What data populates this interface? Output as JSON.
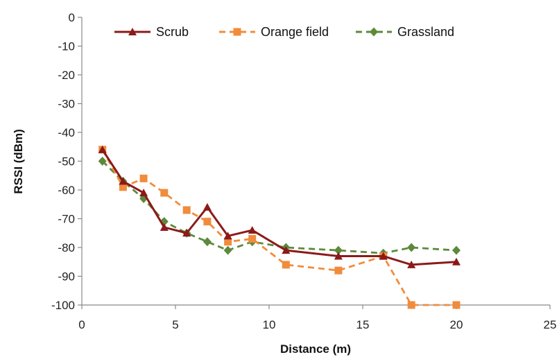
{
  "chart_data": {
    "type": "line",
    "xlabel": "Distance (m)",
    "ylabel": "RSSI (dBm)",
    "xlim": [
      0,
      25
    ],
    "ylim": [
      -100,
      0
    ],
    "xticks": [
      "0",
      "5",
      "10",
      "15",
      "20",
      "25"
    ],
    "yticks": [
      "0",
      "-10",
      "-20",
      "-30",
      "-40",
      "-50",
      "-60",
      "-70",
      "-80",
      "-90",
      "-100"
    ],
    "grid": false,
    "legend_position": "top",
    "series": [
      {
        "name": "Scrub",
        "color": "#8b1a1a",
        "dash": "solid",
        "marker": "triangle",
        "x": [
          1.1,
          2.2,
          3.3,
          4.4,
          5.6,
          6.7,
          7.8,
          9.1,
          10.9,
          13.7,
          16.1,
          17.6,
          20.0
        ],
        "y": [
          -46,
          -57,
          -61,
          -73,
          -75,
          -66,
          -76,
          -74,
          -81,
          -83,
          -83,
          -86,
          -85
        ]
      },
      {
        "name": "Orange field",
        "color": "#f08c3c",
        "dash": "dashed",
        "marker": "square",
        "x": [
          1.1,
          2.2,
          3.3,
          4.4,
          5.6,
          6.7,
          7.8,
          9.1,
          10.9,
          13.7,
          16.1,
          17.6,
          20.0
        ],
        "y": [
          -46,
          -59,
          -56,
          -61,
          -67,
          -71,
          -78,
          -77,
          -86,
          -88,
          -83,
          -100,
          -100
        ]
      },
      {
        "name": "Grassland",
        "color": "#5c8a3a",
        "dash": "dashed",
        "marker": "diamond",
        "x": [
          1.1,
          2.2,
          3.3,
          4.4,
          5.6,
          6.7,
          7.8,
          9.1,
          10.9,
          13.7,
          16.1,
          17.6,
          20.0
        ],
        "y": [
          -50,
          -57,
          -63,
          -71,
          -75,
          -78,
          -81,
          -78,
          -80,
          -81,
          -82,
          -80,
          -81
        ]
      }
    ]
  }
}
